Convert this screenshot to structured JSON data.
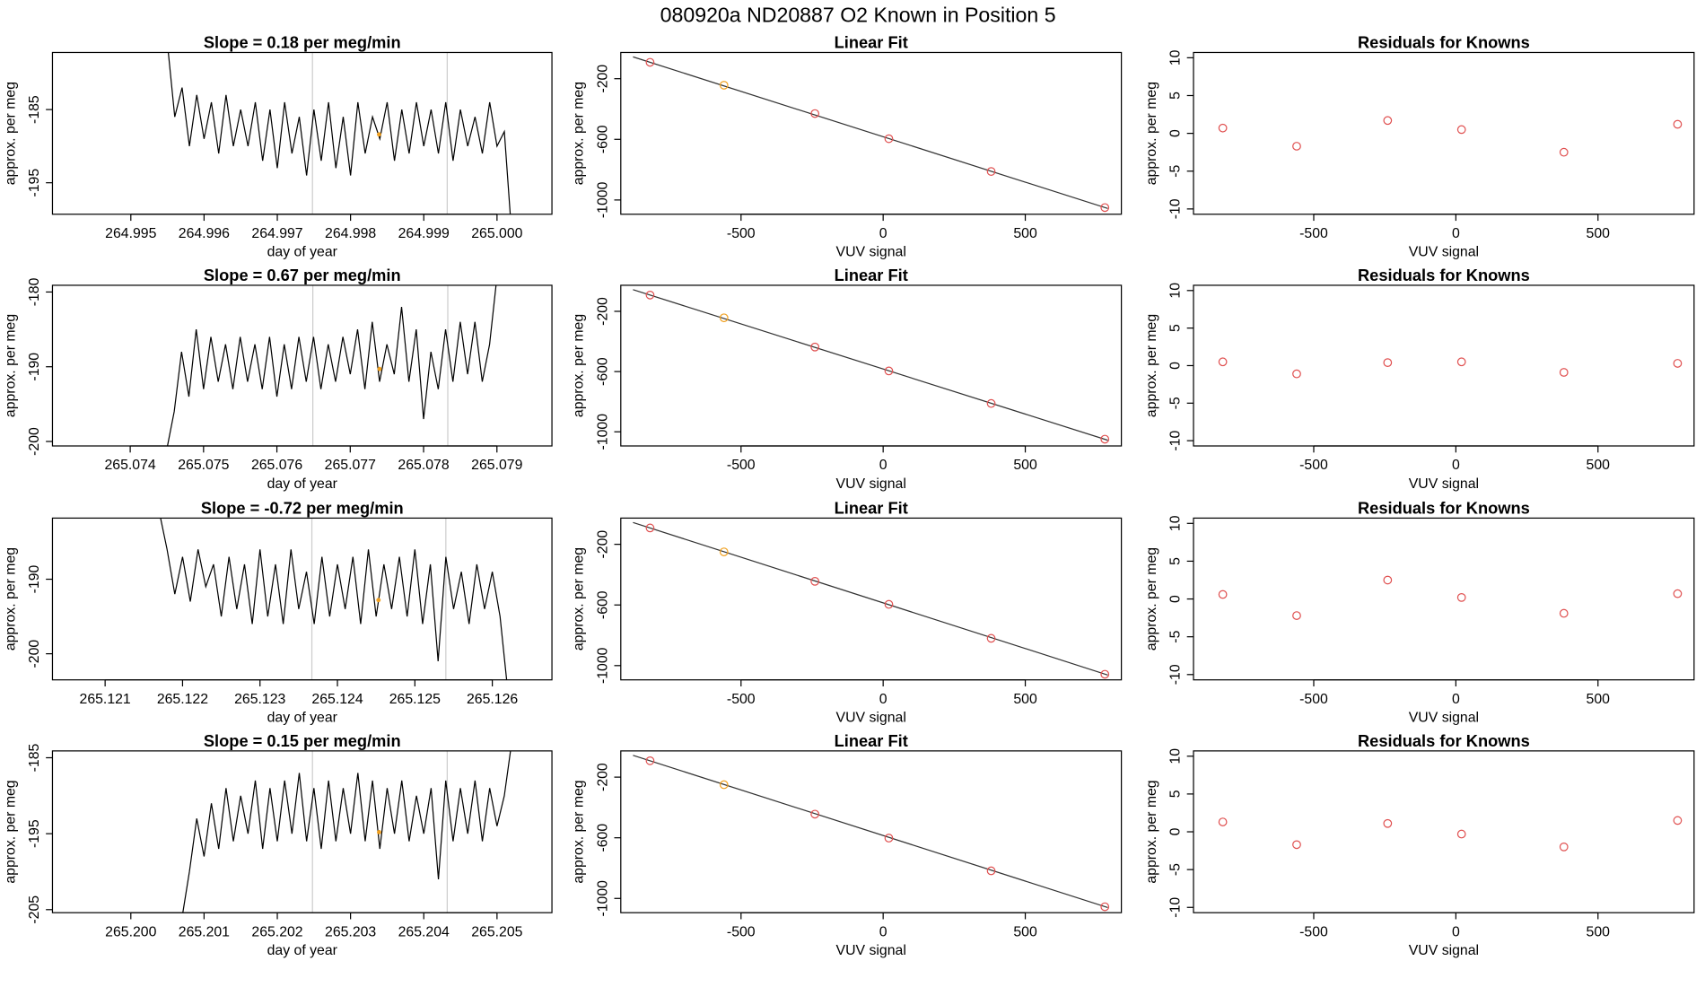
{
  "title": "080920a     ND20887   O2 Known in Position  5",
  "chart_data": [
    {
      "type": "line",
      "title": "Slope =  0.18  per meg/min",
      "xlabel": "day of year",
      "ylabel": "approx. per meg",
      "color": "#000000",
      "x": [
        264.9955,
        264.9956,
        264.9957,
        264.9958,
        264.9959,
        264.996,
        264.9961,
        264.9962,
        264.9963,
        264.9964,
        264.9965,
        264.9966,
        264.9967,
        264.9968,
        264.9969,
        264.997,
        264.9971,
        264.9972,
        264.9973,
        264.9974,
        264.9975,
        264.9976,
        264.9977,
        264.9978,
        264.9979,
        264.998,
        264.9981,
        264.9982,
        264.9983,
        264.9984,
        264.9985,
        264.9986,
        264.9987,
        264.9988,
        264.9989,
        264.999,
        264.9991,
        264.9992,
        264.9993,
        264.9994,
        264.9995,
        264.9996,
        264.9997,
        264.9998,
        264.9999,
        265.0,
        265.0001,
        265.0002
      ],
      "values": [
        -176,
        -186,
        -182,
        -190,
        -183,
        -189,
        -184,
        -191,
        -183,
        -190,
        -185,
        -190,
        -184,
        -192,
        -185,
        -193,
        -184,
        -191,
        -186,
        -194,
        -185,
        -192,
        -184,
        -193,
        -186,
        -194,
        -184,
        -191,
        -186,
        -189,
        -184,
        -192,
        -185,
        -191,
        -184,
        -190,
        -185,
        -191,
        -184,
        -192,
        -185,
        -190,
        -186,
        -191,
        -184,
        -190,
        -188,
        -202
      ],
      "xlim": [
        264.99393,
        265.00075
      ],
      "ylim": [
        -199.3,
        -177.2
      ],
      "xticks": [
        264.995,
        264.996,
        264.997,
        264.998,
        264.999,
        {
          "value": 265.0,
          "label": "265.000"
        }
      ],
      "yticks": [
        -185,
        -195
      ],
      "vlines": [
        264.99748,
        264.99932
      ],
      "vline_color": "#cccccc",
      "highlight": {
        "x": 264.99839,
        "y": -188.4,
        "color": "#f0a020"
      }
    },
    {
      "type": "scatter",
      "title": "Linear Fit",
      "xlabel": "VUV signal",
      "ylabel": "approx. per meg",
      "x": [
        -820,
        -560,
        -240,
        20,
        380,
        780
      ],
      "values": [
        -92,
        -243,
        -430,
        -596,
        -812,
        -1050
      ],
      "colors": [
        "#e05050",
        "#f0a020",
        "#e05050",
        "#e05050",
        "#e05050",
        "#e05050"
      ],
      "fit_line": {
        "x": [
          -880,
          790
        ],
        "values": [
          -56,
          -1056
        ],
        "color": "#333333"
      },
      "xlim": [
        -923,
        838
      ],
      "ylim": [
        -1094,
        -27
      ],
      "xticks": [
        -500,
        0,
        500
      ],
      "yticks": [
        -200,
        -600,
        -1000
      ]
    },
    {
      "type": "scatter",
      "title": "Residuals for Knowns",
      "xlabel": "VUV signal",
      "ylabel": "approx. per meg",
      "color": "#e05050",
      "x": [
        -820,
        -560,
        -240,
        20,
        380,
        780
      ],
      "values": [
        0.7,
        -1.7,
        1.7,
        0.5,
        -2.5,
        1.2
      ],
      "xlim": [
        -923,
        838
      ],
      "ylim": [
        -10.7,
        10.7
      ],
      "xticks": [
        -500,
        0,
        500
      ],
      "yticks": [
        -10,
        -5,
        0,
        5,
        10
      ]
    },
    {
      "type": "line",
      "title": "Slope =  0.67  per meg/min",
      "xlabel": "day of year",
      "ylabel": "approx. per meg",
      "color": "#000000",
      "x": [
        265.0745,
        265.0746,
        265.0747,
        265.0748,
        265.0749,
        265.075,
        265.0751,
        265.0752,
        265.0753,
        265.0754,
        265.0755,
        265.0756,
        265.0757,
        265.0758,
        265.0759,
        265.076,
        265.0761,
        265.0762,
        265.0763,
        265.0764,
        265.0765,
        265.0766,
        265.0767,
        265.0768,
        265.0769,
        265.077,
        265.0771,
        265.0772,
        265.0773,
        265.0774,
        265.0775,
        265.0776,
        265.0777,
        265.0778,
        265.0779,
        265.078,
        265.0781,
        265.0782,
        265.0783,
        265.0784,
        265.0785,
        265.0786,
        265.0787,
        265.0788,
        265.0789,
        265.079
      ],
      "values": [
        -201,
        -196,
        -188,
        -194,
        -185,
        -193,
        -186,
        -192,
        -187,
        -193,
        -186,
        -192,
        -187,
        -193,
        -186,
        -194,
        -187,
        -193,
        -186,
        -192,
        -186,
        -193,
        -187,
        -192,
        -186,
        -191,
        -185,
        -193,
        -184,
        -192,
        -187,
        -191,
        -182,
        -192,
        -185,
        -197,
        -188,
        -193,
        -185,
        -192,
        -184,
        -191,
        -184,
        -192,
        -187,
        -178
      ],
      "xlim": [
        265.07294,
        265.07975
      ],
      "ylim": [
        -200.6,
        -179.1
      ],
      "xticks": [
        265.074,
        265.075,
        265.076,
        265.077,
        265.078,
        265.079
      ],
      "yticks": [
        -180,
        -190,
        -200
      ],
      "vlines": [
        265.07649,
        265.07833
      ],
      "vline_color": "#cccccc",
      "highlight": {
        "x": 265.0774,
        "y": -190.3,
        "color": "#f0a020"
      }
    },
    {
      "type": "scatter",
      "title": "Linear Fit",
      "xlabel": "VUV signal",
      "ylabel": "approx. per meg",
      "x": [
        -820,
        -560,
        -240,
        20,
        380,
        780
      ],
      "values": [
        -92,
        -243,
        -437,
        -596,
        -812,
        -1049
      ],
      "colors": [
        "#e05050",
        "#f0a020",
        "#e05050",
        "#e05050",
        "#e05050",
        "#e05050"
      ],
      "fit_line": {
        "x": [
          -880,
          790
        ],
        "values": [
          -56,
          -1056
        ],
        "color": "#333333"
      },
      "xlim": [
        -923,
        838
      ],
      "ylim": [
        -1094,
        -27
      ],
      "xticks": [
        -500,
        0,
        500
      ],
      "yticks": [
        -200,
        -600,
        -1000
      ]
    },
    {
      "type": "scatter",
      "title": "Residuals for Knowns",
      "xlabel": "VUV signal",
      "ylabel": "approx. per meg",
      "color": "#e05050",
      "x": [
        -820,
        -560,
        -240,
        20,
        380,
        780
      ],
      "values": [
        0.5,
        -1.1,
        0.4,
        0.5,
        -0.9,
        0.3
      ],
      "xlim": [
        -923,
        838
      ],
      "ylim": [
        -10.7,
        10.7
      ],
      "xticks": [
        -500,
        0,
        500
      ],
      "yticks": [
        -10,
        -5,
        0,
        5,
        10
      ]
    },
    {
      "type": "line",
      "title": "Slope =  -0.72  per meg/min",
      "xlabel": "day of year",
      "ylabel": "approx. per meg",
      "color": "#000000",
      "x": [
        265.1217,
        265.1218,
        265.1219,
        265.122,
        265.1221,
        265.1222,
        265.1223,
        265.1224,
        265.1225,
        265.1226,
        265.1227,
        265.1228,
        265.1229,
        265.123,
        265.1231,
        265.1232,
        265.1233,
        265.1234,
        265.1235,
        265.1236,
        265.1237,
        265.1238,
        265.1239,
        265.124,
        265.1241,
        265.1242,
        265.1243,
        265.1244,
        265.1245,
        265.1246,
        265.1247,
        265.1248,
        265.1249,
        265.125,
        265.1251,
        265.1252,
        265.1253,
        265.1254,
        265.1255,
        265.1256,
        265.1257,
        265.1258,
        265.1259,
        265.126,
        265.1261,
        265.1262
      ],
      "values": [
        -181,
        -186,
        -192,
        -187,
        -193,
        -186,
        -191,
        -188,
        -195,
        -187,
        -194,
        -188,
        -196,
        -186,
        -195,
        -188,
        -196,
        -186,
        -194,
        -189,
        -196,
        -187,
        -195,
        -188,
        -194,
        -187,
        -196,
        -186,
        -195,
        -188,
        -194,
        -187,
        -195,
        -186,
        -196,
        -188,
        -201,
        -187,
        -194,
        -189,
        -196,
        -188,
        -194,
        -189,
        -195,
        -205
      ],
      "xlim": [
        265.12032,
        265.12677
      ],
      "ylim": [
        -203.5,
        -181.8
      ],
      "xticks": [
        265.121,
        265.122,
        265.123,
        265.124,
        265.125,
        265.126
      ],
      "yticks": [
        -190,
        -200
      ],
      "vlines": [
        265.12367,
        265.1254
      ],
      "vline_color": "#cccccc",
      "highlight": {
        "x": 265.12453,
        "y": -192.8,
        "color": "#f0a020"
      }
    },
    {
      "type": "scatter",
      "title": "Linear Fit",
      "xlabel": "VUV signal",
      "ylabel": "approx. per meg",
      "x": [
        -820,
        -560,
        -240,
        20,
        380,
        780
      ],
      "values": [
        -92,
        -250,
        -444,
        -596,
        -820,
        -1057
      ],
      "colors": [
        "#e05050",
        "#f0a020",
        "#e05050",
        "#e05050",
        "#e05050",
        "#e05050"
      ],
      "fit_line": {
        "x": [
          -880,
          790
        ],
        "values": [
          -56,
          -1062
        ],
        "color": "#333333"
      },
      "xlim": [
        -923,
        838
      ],
      "ylim": [
        -1094,
        -27
      ],
      "xticks": [
        -500,
        0,
        500
      ],
      "yticks": [
        -200,
        -600,
        -1000
      ]
    },
    {
      "type": "scatter",
      "title": "Residuals for Knowns",
      "xlabel": "VUV signal",
      "ylabel": "approx. per meg",
      "color": "#e05050",
      "x": [
        -820,
        -560,
        -240,
        20,
        380,
        780
      ],
      "values": [
        0.6,
        -2.2,
        2.5,
        0.2,
        -1.9,
        0.7
      ],
      "xlim": [
        -923,
        838
      ],
      "ylim": [
        -10.7,
        10.7
      ],
      "xticks": [
        -500,
        0,
        500
      ],
      "yticks": [
        -10,
        -5,
        0,
        5,
        10
      ]
    },
    {
      "type": "line",
      "title": "Slope =  0.15  per meg/min",
      "xlabel": "day of year",
      "ylabel": "approx. per meg",
      "color": "#000000",
      "x": [
        265.2007,
        265.2008,
        265.2009,
        265.201,
        265.2011,
        265.2012,
        265.2013,
        265.2014,
        265.2015,
        265.2016,
        265.2017,
        265.2018,
        265.2019,
        265.202,
        265.2021,
        265.2022,
        265.2023,
        265.2024,
        265.2025,
        265.2026,
        265.2027,
        265.2028,
        265.2029,
        265.203,
        265.2031,
        265.2032,
        265.2033,
        265.2034,
        265.2035,
        265.2036,
        265.2037,
        265.2038,
        265.2039,
        265.204,
        265.2041,
        265.2042,
        265.2043,
        265.2044,
        265.2045,
        265.2046,
        265.2047,
        265.2048,
        265.2049,
        265.205,
        265.2051,
        265.2052
      ],
      "values": [
        -206,
        -200,
        -193,
        -198,
        -191,
        -197,
        -189,
        -196,
        -190,
        -195,
        -188,
        -197,
        -189,
        -196,
        -188,
        -195,
        -187,
        -196,
        -189,
        -197,
        -188,
        -196,
        -189,
        -195,
        -187,
        -196,
        -188,
        -197,
        -189,
        -195,
        -188,
        -196,
        -190,
        -195,
        -189,
        -201,
        -188,
        -196,
        -189,
        -195,
        -188,
        -196,
        -189,
        -194,
        -190,
        -183
      ],
      "xlim": [
        265.19893,
        265.20575
      ],
      "ylim": [
        -205.4,
        -184.1
      ],
      "xticks": [
        {
          "value": 265.2,
          "label": "265.200"
        },
        265.201,
        265.202,
        265.203,
        265.204,
        265.205
      ],
      "yticks": [
        -185,
        -195,
        -205
      ],
      "vlines": [
        265.20248,
        265.20432
      ],
      "vline_color": "#cccccc",
      "highlight": {
        "x": 265.20339,
        "y": -194.8,
        "color": "#f0a020"
      }
    },
    {
      "type": "scatter",
      "title": "Linear Fit",
      "xlabel": "VUV signal",
      "ylabel": "approx. per meg",
      "x": [
        -820,
        -560,
        -240,
        20,
        380,
        780
      ],
      "values": [
        -92,
        -250,
        -444,
        -602,
        -818,
        -1055
      ],
      "colors": [
        "#e05050",
        "#f0a020",
        "#e05050",
        "#e05050",
        "#e05050",
        "#e05050"
      ],
      "fit_line": {
        "x": [
          -880,
          790
        ],
        "values": [
          -56,
          -1060
        ],
        "color": "#333333"
      },
      "xlim": [
        -923,
        838
      ],
      "ylim": [
        -1094,
        -27
      ],
      "xticks": [
        -500,
        0,
        500
      ],
      "yticks": [
        -200,
        -600,
        -1000
      ]
    },
    {
      "type": "scatter",
      "title": "Residuals for Knowns",
      "xlabel": "VUV signal",
      "ylabel": "approx. per meg",
      "color": "#e05050",
      "x": [
        -820,
        -560,
        -240,
        20,
        380,
        780
      ],
      "values": [
        1.3,
        -1.7,
        1.1,
        -0.3,
        -2.0,
        1.5
      ],
      "xlim": [
        -923,
        838
      ],
      "ylim": [
        -10.7,
        10.7
      ],
      "xticks": [
        -500,
        0,
        500
      ],
      "yticks": [
        -10,
        -5,
        0,
        5,
        10
      ]
    }
  ]
}
